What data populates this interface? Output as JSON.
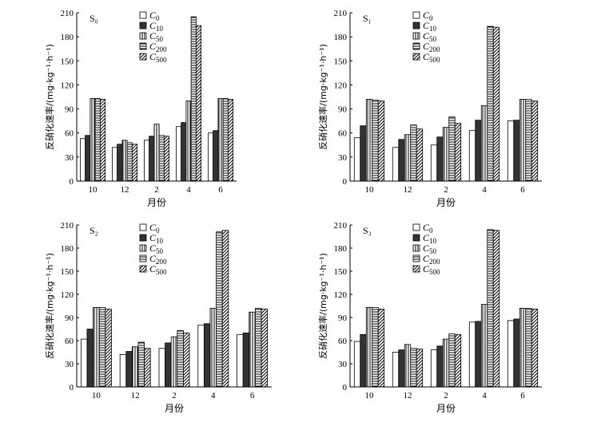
{
  "chart_data": [
    {
      "type": "bar",
      "title": "S₀",
      "xlabel": "月份",
      "ylabel": "反硝化速率/(mg·kg⁻¹·h⁻¹)",
      "categories": [
        "10",
        "12",
        "2",
        "4",
        "6"
      ],
      "ylim": [
        0,
        210
      ],
      "yticks": [
        "0",
        "30",
        "60",
        "90",
        "120",
        "150",
        "180",
        "210"
      ],
      "series": [
        {
          "name": "C0",
          "values": [
            53,
            42,
            51,
            68,
            60
          ]
        },
        {
          "name": "C10",
          "values": [
            57,
            46,
            56,
            73,
            63
          ]
        },
        {
          "name": "C50",
          "values": [
            103,
            51,
            71,
            100,
            103
          ]
        },
        {
          "name": "C200",
          "values": [
            103,
            48,
            57,
            205,
            103
          ]
        },
        {
          "name": "C500",
          "values": [
            102,
            46,
            56,
            194,
            102
          ]
        }
      ]
    },
    {
      "type": "bar",
      "title": "S₁",
      "xlabel": "月份",
      "ylabel": "反硝化速率/(mg·kg⁻¹·h⁻¹)",
      "categories": [
        "10",
        "12",
        "2",
        "4",
        "6"
      ],
      "ylim": [
        0,
        210
      ],
      "yticks": [
        "0",
        "30",
        "60",
        "90",
        "120",
        "150",
        "180",
        "210"
      ],
      "series": [
        {
          "name": "C0",
          "values": [
            54,
            42,
            45,
            63,
            75
          ]
        },
        {
          "name": "C10",
          "values": [
            69,
            52,
            55,
            76,
            76
          ]
        },
        {
          "name": "C50",
          "values": [
            102,
            58,
            67,
            94,
            102
          ]
        },
        {
          "name": "C200",
          "values": [
            101,
            70,
            80,
            193,
            102
          ]
        },
        {
          "name": "C500",
          "values": [
            100,
            65,
            72,
            192,
            100
          ]
        }
      ]
    },
    {
      "type": "bar",
      "title": "S₂",
      "xlabel": "月份",
      "ylabel": "反硝化速率/(mg·kg⁻¹·h⁻¹)",
      "categories": [
        "10",
        "12",
        "2",
        "4",
        "6"
      ],
      "ylim": [
        0,
        210
      ],
      "yticks": [
        "0",
        "30",
        "60",
        "90",
        "120",
        "150",
        "180",
        "210"
      ],
      "series": [
        {
          "name": "C0",
          "values": [
            62,
            42,
            50,
            80,
            68
          ]
        },
        {
          "name": "C10",
          "values": [
            75,
            46,
            57,
            82,
            70
          ]
        },
        {
          "name": "C50",
          "values": [
            103,
            52,
            65,
            102,
            97
          ]
        },
        {
          "name": "C200",
          "values": [
            103,
            58,
            73,
            201,
            102
          ]
        },
        {
          "name": "C500",
          "values": [
            101,
            50,
            70,
            203,
            101
          ]
        }
      ]
    },
    {
      "type": "bar",
      "title": "S₃",
      "xlabel": "月份",
      "ylabel": "反硝化速率/(mg·kg⁻¹·h⁻¹)",
      "categories": [
        "10",
        "12",
        "2",
        "4",
        "6"
      ],
      "ylim": [
        0,
        210
      ],
      "yticks": [
        "0",
        "30",
        "60",
        "90",
        "120",
        "150",
        "180",
        "210"
      ],
      "series": [
        {
          "name": "C0",
          "values": [
            59,
            45,
            48,
            84,
            86
          ]
        },
        {
          "name": "C10",
          "values": [
            68,
            48,
            53,
            85,
            88
          ]
        },
        {
          "name": "C50",
          "values": [
            103,
            55,
            62,
            107,
            102
          ]
        },
        {
          "name": "C200",
          "values": [
            103,
            50,
            69,
            204,
            102
          ]
        },
        {
          "name": "C500",
          "values": [
            101,
            49,
            68,
            203,
            101
          ]
        }
      ]
    }
  ],
  "legend_labels": [
    {
      "base": "C",
      "sub": "0"
    },
    {
      "base": "C",
      "sub": "10"
    },
    {
      "base": "C",
      "sub": "50"
    },
    {
      "base": "C",
      "sub": "200"
    },
    {
      "base": "C",
      "sub": "500"
    }
  ]
}
